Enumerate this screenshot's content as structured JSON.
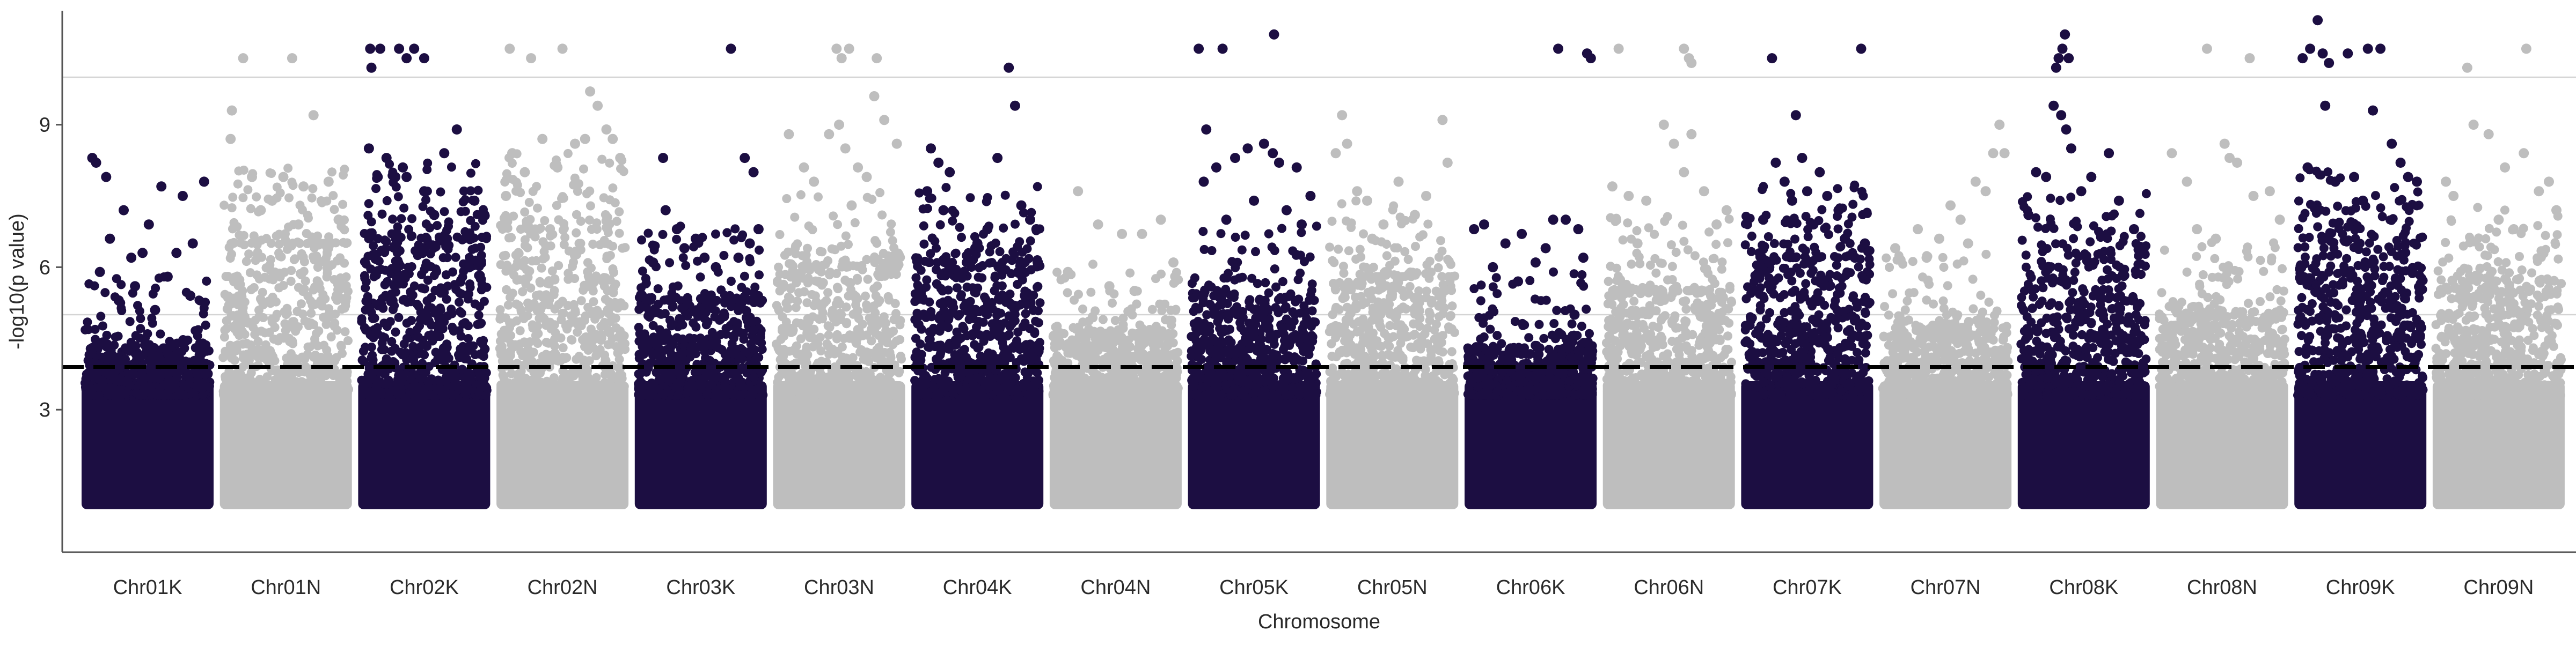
{
  "chart_data": {
    "type": "scatter",
    "title": "",
    "xlabel": "Chromosome",
    "ylabel": "-log10(p value)",
    "y_ticks": [
      3,
      6,
      9
    ],
    "ylim": [
      0.0,
      11.4
    ],
    "grid": "horizontal gridlines at 5 and 10",
    "gridlines_y": [
      5,
      10
    ],
    "threshold": {
      "y": 3.9,
      "style": "dashed"
    },
    "point_floor": 1.0,
    "colors": {
      "dark": "#1c0e42",
      "light": "#bebebe",
      "axis": "#555555",
      "grid": "#d4d4d4"
    },
    "chromosomes": [
      {
        "name": "Chr01K",
        "color": "dark",
        "dense_top": 4.3,
        "points": [
          [
            0.06,
            8.3
          ],
          [
            0.09,
            8.2
          ],
          [
            0.17,
            7.9
          ],
          [
            0.2,
            6.6
          ],
          [
            0.31,
            7.2
          ],
          [
            0.37,
            6.2
          ],
          [
            0.46,
            6.3
          ],
          [
            0.51,
            6.9
          ],
          [
            0.61,
            7.7
          ],
          [
            0.73,
            6.3
          ],
          [
            0.78,
            7.5
          ],
          [
            0.86,
            6.5
          ],
          [
            0.95,
            7.8
          ],
          [
            0.12,
            5.9
          ],
          [
            0.4,
            5.6
          ],
          [
            0.66,
            5.8
          ],
          [
            0.27,
            5.3
          ],
          [
            0.56,
            5.1
          ],
          [
            0.84,
            5.4
          ]
        ]
      },
      {
        "name": "Chr01N",
        "color": "light",
        "dense_top": 6.5,
        "points": [
          [
            0.06,
            8.7
          ],
          [
            0.07,
            9.3
          ],
          [
            0.16,
            10.4
          ],
          [
            0.23,
            7.9
          ],
          [
            0.39,
            7.4
          ],
          [
            0.48,
            7.9
          ],
          [
            0.55,
            10.4
          ],
          [
            0.64,
            7.7
          ],
          [
            0.72,
            9.2
          ],
          [
            0.84,
            7.8
          ],
          [
            0.92,
            7.0
          ],
          [
            0.3,
            7.2
          ],
          [
            0.6,
            6.9
          ]
        ]
      },
      {
        "name": "Chr02K",
        "color": "dark",
        "dense_top": 6.6,
        "points": [
          [
            0.07,
            10.6
          ],
          [
            0.08,
            10.2
          ],
          [
            0.15,
            10.6
          ],
          [
            0.3,
            10.6
          ],
          [
            0.36,
            10.4
          ],
          [
            0.42,
            10.6
          ],
          [
            0.5,
            10.4
          ],
          [
            0.06,
            8.5
          ],
          [
            0.13,
            7.9
          ],
          [
            0.2,
            8.3
          ],
          [
            0.27,
            7.9
          ],
          [
            0.33,
            8.1
          ],
          [
            0.36,
            7.9
          ],
          [
            0.5,
            7.6
          ],
          [
            0.66,
            8.4
          ],
          [
            0.76,
            8.9
          ],
          [
            0.9,
            7.4
          ],
          [
            0.98,
            7.1
          ],
          [
            0.58,
            7.1
          ]
        ]
      },
      {
        "name": "Chr02N",
        "color": "light",
        "dense_top": 6.8,
        "points": [
          [
            0.08,
            10.6
          ],
          [
            0.25,
            10.4
          ],
          [
            0.5,
            10.6
          ],
          [
            0.72,
            9.7
          ],
          [
            0.78,
            9.4
          ],
          [
            0.85,
            8.9
          ],
          [
            0.9,
            8.7
          ],
          [
            0.1,
            8.4
          ],
          [
            0.2,
            8.0
          ],
          [
            0.34,
            8.7
          ],
          [
            0.46,
            8.1
          ],
          [
            0.6,
            8.6
          ],
          [
            0.68,
            8.7
          ],
          [
            0.96,
            8.3
          ],
          [
            0.05,
            7.5
          ]
        ]
      },
      {
        "name": "Chr03K",
        "color": "dark",
        "dense_top": 5.3,
        "points": [
          [
            0.2,
            8.3
          ],
          [
            0.85,
            8.3
          ],
          [
            0.92,
            8.0
          ],
          [
            0.74,
            10.6
          ],
          [
            0.22,
            7.2
          ],
          [
            0.31,
            6.8
          ],
          [
            0.37,
            6.4
          ],
          [
            0.46,
            6.6
          ],
          [
            0.53,
            6.2
          ],
          [
            0.62,
            6.0
          ],
          [
            0.8,
            6.2
          ],
          [
            0.89,
            6.5
          ],
          [
            0.96,
            6.8
          ],
          [
            0.12,
            6.1
          ]
        ]
      },
      {
        "name": "Chr03N",
        "color": "light",
        "dense_top": 6.0,
        "points": [
          [
            0.48,
            10.6
          ],
          [
            0.52,
            10.4
          ],
          [
            0.58,
            10.6
          ],
          [
            0.8,
            10.4
          ],
          [
            0.1,
            8.8
          ],
          [
            0.22,
            8.1
          ],
          [
            0.42,
            8.8
          ],
          [
            0.5,
            9.0
          ],
          [
            0.55,
            8.5
          ],
          [
            0.65,
            8.1
          ],
          [
            0.72,
            7.9
          ],
          [
            0.78,
            9.6
          ],
          [
            0.86,
            9.1
          ],
          [
            0.96,
            8.6
          ],
          [
            0.3,
            7.8
          ],
          [
            0.6,
            7.3
          ]
        ]
      },
      {
        "name": "Chr04K",
        "color": "dark",
        "dense_top": 6.1,
        "points": [
          [
            0.13,
            8.5
          ],
          [
            0.19,
            8.2
          ],
          [
            0.28,
            8.0
          ],
          [
            0.66,
            8.3
          ],
          [
            0.75,
            10.2
          ],
          [
            0.8,
            9.4
          ],
          [
            0.85,
            7.3
          ],
          [
            0.92,
            7.0
          ],
          [
            0.97,
            6.8
          ],
          [
            0.1,
            7.6
          ],
          [
            0.23,
            7.2
          ],
          [
            0.5,
            6.5
          ],
          [
            0.58,
            6.8
          ]
        ]
      },
      {
        "name": "Chr04N",
        "color": "light",
        "dense_top": 4.6,
        "points": [
          [
            0.2,
            7.6
          ],
          [
            0.36,
            6.9
          ],
          [
            0.55,
            6.7
          ],
          [
            0.71,
            6.7
          ],
          [
            0.86,
            7.0
          ],
          [
            0.96,
            6.1
          ],
          [
            0.12,
            5.9
          ],
          [
            0.45,
            5.6
          ],
          [
            0.65,
            5.5
          ]
        ]
      },
      {
        "name": "Chr05K",
        "color": "dark",
        "dense_top": 5.3,
        "points": [
          [
            0.06,
            10.6
          ],
          [
            0.25,
            10.6
          ],
          [
            0.66,
            10.9
          ],
          [
            0.12,
            8.9
          ],
          [
            0.2,
            8.1
          ],
          [
            0.35,
            8.3
          ],
          [
            0.45,
            8.5
          ],
          [
            0.58,
            8.6
          ],
          [
            0.65,
            8.4
          ],
          [
            0.7,
            8.2
          ],
          [
            0.84,
            8.1
          ],
          [
            0.95,
            7.5
          ],
          [
            0.1,
            7.8
          ],
          [
            0.28,
            7.0
          ],
          [
            0.5,
            7.4
          ],
          [
            0.76,
            7.2
          ],
          [
            0.88,
            6.9
          ]
        ]
      },
      {
        "name": "Chr05N",
        "color": "light",
        "dense_top": 5.8,
        "points": [
          [
            0.05,
            8.4
          ],
          [
            0.1,
            9.2
          ],
          [
            0.14,
            8.6
          ],
          [
            0.22,
            7.6
          ],
          [
            0.3,
            7.4
          ],
          [
            0.43,
            6.9
          ],
          [
            0.55,
            7.8
          ],
          [
            0.68,
            7.1
          ],
          [
            0.77,
            7.5
          ],
          [
            0.9,
            9.1
          ],
          [
            0.94,
            8.2
          ],
          [
            0.34,
            6.6
          ]
        ]
      },
      {
        "name": "Chr06K",
        "color": "dark",
        "dense_top": 4.3,
        "points": [
          [
            0.05,
            6.8
          ],
          [
            0.13,
            6.9
          ],
          [
            0.3,
            6.5
          ],
          [
            0.43,
            6.7
          ],
          [
            0.54,
            6.1
          ],
          [
            0.68,
            7.0
          ],
          [
            0.78,
            7.0
          ],
          [
            0.88,
            6.8
          ],
          [
            0.92,
            6.2
          ],
          [
            0.2,
            6.0
          ],
          [
            0.62,
            6.4
          ],
          [
            0.4,
            5.7
          ],
          [
            0.72,
            10.6
          ],
          [
            0.95,
            10.5
          ],
          [
            0.98,
            10.4
          ],
          [
            0.85,
            5.0
          ]
        ]
      },
      {
        "name": "Chr06N",
        "color": "light",
        "dense_top": 5.5,
        "points": [
          [
            0.1,
            10.6
          ],
          [
            0.62,
            10.6
          ],
          [
            0.66,
            10.4
          ],
          [
            0.68,
            10.3
          ],
          [
            0.05,
            7.7
          ],
          [
            0.18,
            7.5
          ],
          [
            0.32,
            7.4
          ],
          [
            0.46,
            9.0
          ],
          [
            0.54,
            8.6
          ],
          [
            0.62,
            8.0
          ],
          [
            0.68,
            8.8
          ],
          [
            0.78,
            7.6
          ],
          [
            0.88,
            6.9
          ],
          [
            0.96,
            7.2
          ],
          [
            0.25,
            6.5
          ]
        ]
      },
      {
        "name": "Chr07K",
        "color": "dark",
        "dense_top": 6.2,
        "points": [
          [
            0.22,
            10.4
          ],
          [
            0.41,
            9.2
          ],
          [
            0.25,
            8.2
          ],
          [
            0.32,
            7.8
          ],
          [
            0.38,
            7.4
          ],
          [
            0.46,
            8.3
          ],
          [
            0.5,
            7.6
          ],
          [
            0.6,
            8.0
          ],
          [
            0.66,
            7.5
          ],
          [
            0.75,
            7.2
          ],
          [
            0.8,
            6.6
          ],
          [
            0.88,
            6.2
          ],
          [
            0.93,
            10.6
          ],
          [
            0.15,
            7.0
          ],
          [
            0.55,
            6.9
          ],
          [
            0.96,
            6.5
          ]
        ]
      },
      {
        "name": "Chr07N",
        "color": "light",
        "dense_top": 4.7,
        "points": [
          [
            0.28,
            6.8
          ],
          [
            0.45,
            6.6
          ],
          [
            0.54,
            7.3
          ],
          [
            0.62,
            7.0
          ],
          [
            0.74,
            7.8
          ],
          [
            0.82,
            7.6
          ],
          [
            0.88,
            8.4
          ],
          [
            0.93,
            9.0
          ],
          [
            0.97,
            8.4
          ],
          [
            0.1,
            6.4
          ],
          [
            0.35,
            6.2
          ],
          [
            0.68,
            6.5
          ]
        ]
      },
      {
        "name": "Chr08K",
        "color": "dark",
        "dense_top": 6.0,
        "points": [
          [
            0.28,
            10.2
          ],
          [
            0.3,
            10.4
          ],
          [
            0.33,
            10.6
          ],
          [
            0.35,
            10.9
          ],
          [
            0.38,
            10.4
          ],
          [
            0.26,
            9.4
          ],
          [
            0.32,
            9.2
          ],
          [
            0.36,
            8.9
          ],
          [
            0.4,
            8.5
          ],
          [
            0.12,
            8.0
          ],
          [
            0.2,
            7.9
          ],
          [
            0.48,
            7.6
          ],
          [
            0.56,
            7.9
          ],
          [
            0.7,
            8.4
          ],
          [
            0.78,
            7.4
          ],
          [
            0.9,
            6.8
          ],
          [
            0.06,
            7.1
          ]
        ]
      },
      {
        "name": "Chr08N",
        "color": "light",
        "dense_top": 5.0,
        "points": [
          [
            0.38,
            10.6
          ],
          [
            0.72,
            10.4
          ],
          [
            0.1,
            8.4
          ],
          [
            0.22,
            7.8
          ],
          [
            0.52,
            8.6
          ],
          [
            0.56,
            8.3
          ],
          [
            0.62,
            8.2
          ],
          [
            0.75,
            7.5
          ],
          [
            0.88,
            7.6
          ],
          [
            0.96,
            7.0
          ],
          [
            0.3,
            6.8
          ],
          [
            0.45,
            6.6
          ]
        ]
      },
      {
        "name": "Chr09K",
        "color": "dark",
        "dense_top": 6.5,
        "points": [
          [
            0.04,
            10.4
          ],
          [
            0.1,
            10.6
          ],
          [
            0.16,
            11.2
          ],
          [
            0.2,
            10.5
          ],
          [
            0.25,
            10.3
          ],
          [
            0.4,
            10.5
          ],
          [
            0.56,
            10.6
          ],
          [
            0.22,
            9.4
          ],
          [
            0.6,
            9.3
          ],
          [
            0.66,
            10.6
          ],
          [
            0.75,
            8.6
          ],
          [
            0.82,
            8.2
          ],
          [
            0.88,
            7.9
          ],
          [
            0.95,
            7.8
          ],
          [
            0.08,
            8.1
          ],
          [
            0.3,
            7.8
          ],
          [
            0.45,
            7.9
          ],
          [
            0.52,
            7.4
          ]
        ]
      },
      {
        "name": "Chr09N",
        "color": "light",
        "dense_top": 5.7,
        "points": [
          [
            0.25,
            10.2
          ],
          [
            0.72,
            10.6
          ],
          [
            0.3,
            9.0
          ],
          [
            0.42,
            8.8
          ],
          [
            0.55,
            8.1
          ],
          [
            0.7,
            8.4
          ],
          [
            0.82,
            7.6
          ],
          [
            0.9,
            7.8
          ],
          [
            0.96,
            7.2
          ],
          [
            0.08,
            7.8
          ],
          [
            0.14,
            7.5
          ],
          [
            0.5,
            7.0
          ],
          [
            0.62,
            6.8
          ]
        ]
      }
    ]
  }
}
